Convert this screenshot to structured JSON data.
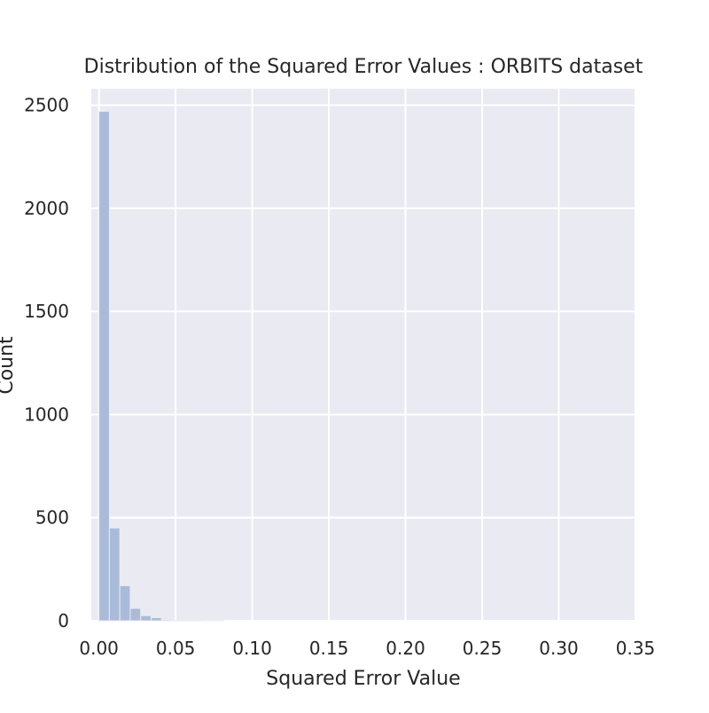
{
  "chart_data": {
    "type": "bar",
    "title": "Distribution of the Squared Error Values : ORBITS dataset",
    "xlabel": "Squared Error Value",
    "ylabel": "Count",
    "xlim": [
      -0.005,
      0.35
    ],
    "ylim": [
      0,
      2580
    ],
    "xticks": [
      "0.00",
      "0.05",
      "0.10",
      "0.15",
      "0.20",
      "0.25",
      "0.30",
      "0.35"
    ],
    "yticks": [
      "0",
      "500",
      "1000",
      "1500",
      "2000",
      "2500"
    ],
    "grid": true,
    "bin_width": 0.0068,
    "bins": [
      {
        "x0": 0.0,
        "count": 2470
      },
      {
        "x0": 0.0068,
        "count": 450
      },
      {
        "x0": 0.0136,
        "count": 170
      },
      {
        "x0": 0.0204,
        "count": 60
      },
      {
        "x0": 0.0272,
        "count": 25
      },
      {
        "x0": 0.034,
        "count": 15
      },
      {
        "x0": 0.0408,
        "count": 5
      },
      {
        "x0": 0.0476,
        "count": 3
      },
      {
        "x0": 0.0544,
        "count": 2
      },
      {
        "x0": 0.0612,
        "count": 2
      },
      {
        "x0": 0.068,
        "count": 1
      },
      {
        "x0": 0.0748,
        "count": 1
      }
    ],
    "colors": {
      "background": "#eaeaf2",
      "bar": "#a9bbd9",
      "bar_edge": "#eaeaf2",
      "grid": "#ffffff"
    }
  }
}
